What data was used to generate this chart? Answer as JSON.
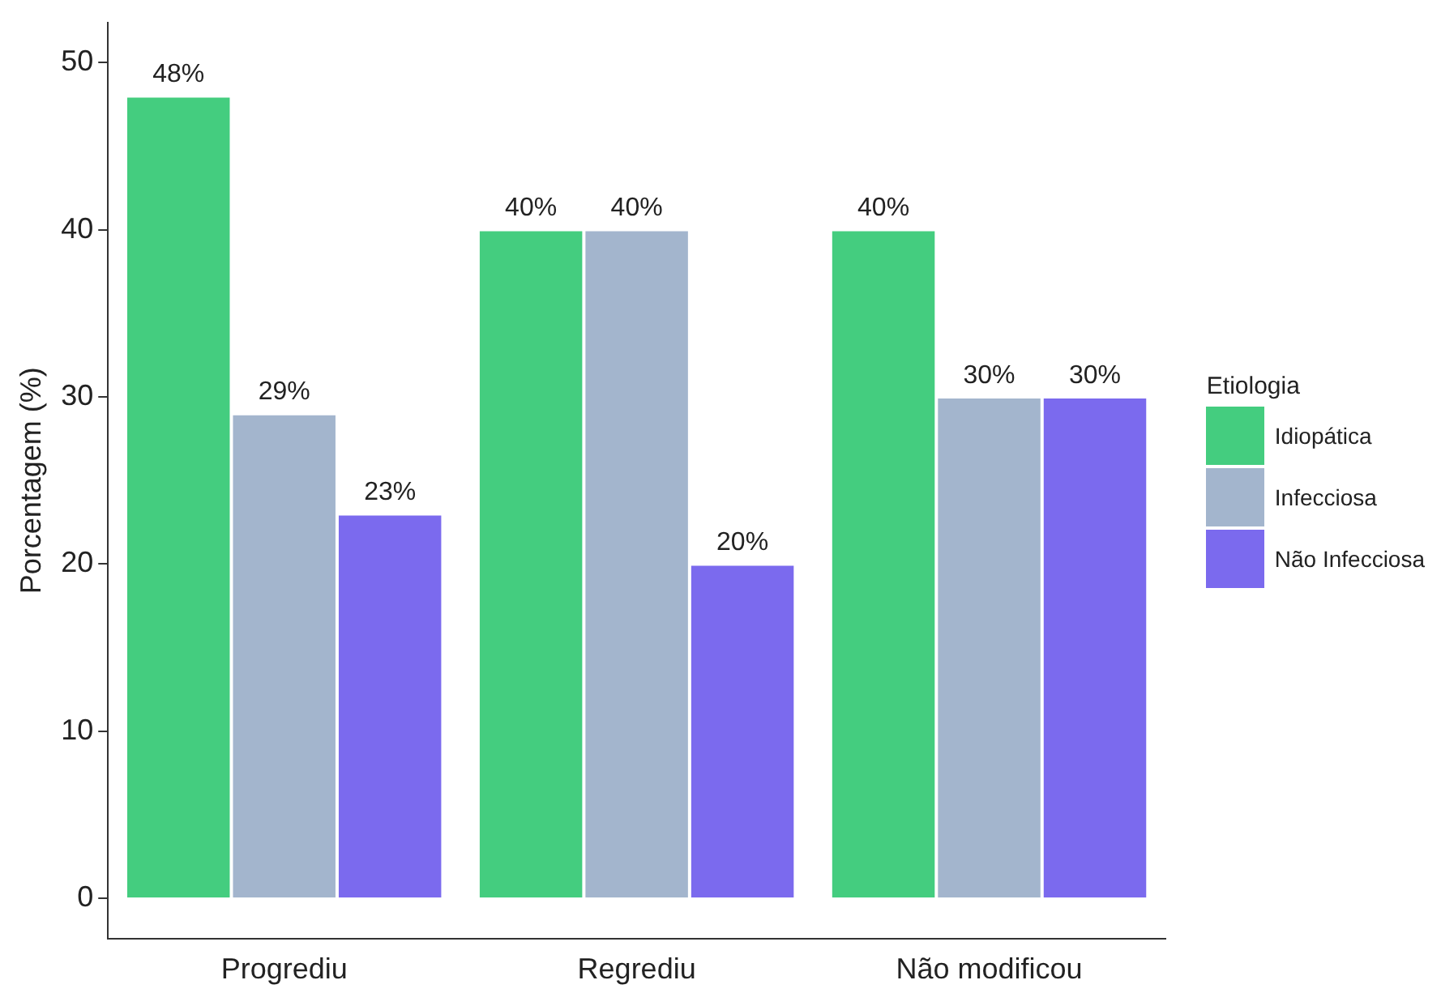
{
  "chart_data": {
    "type": "bar",
    "ylabel": "Porcentagem (%)",
    "legend_title": "Etiologia",
    "legend": "right",
    "grid": false,
    "categories": [
      "Progrediu",
      "Regrediu",
      "Não modificou"
    ],
    "ylim": [
      -2.4,
      52.4
    ],
    "yticks": [
      0,
      10,
      20,
      30,
      40,
      50
    ],
    "series": [
      {
        "name": "Idiopática",
        "color": "#44cd7f",
        "values": [
          48,
          40,
          40
        ],
        "value_labels": [
          "48%",
          "40%",
          "40%"
        ]
      },
      {
        "name": "Infecciosa",
        "color": "#a3b5cd",
        "values": [
          29,
          40,
          30
        ],
        "value_labels": [
          "29%",
          "40%",
          "30%"
        ]
      },
      {
        "name": "Não Infecciosa",
        "color": "#7b6aee",
        "values": [
          23,
          20,
          30
        ],
        "value_labels": [
          "23%",
          "20%",
          "30%"
        ]
      }
    ]
  }
}
